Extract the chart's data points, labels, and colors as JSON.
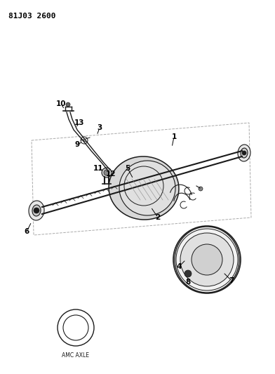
{
  "title_code": "81J03 2600",
  "bg": "#ffffff",
  "lc": "#1a1a1a",
  "fig_width": 3.92,
  "fig_height": 5.33,
  "dpi": 100,
  "amc_label_text": "AMC AXLE"
}
